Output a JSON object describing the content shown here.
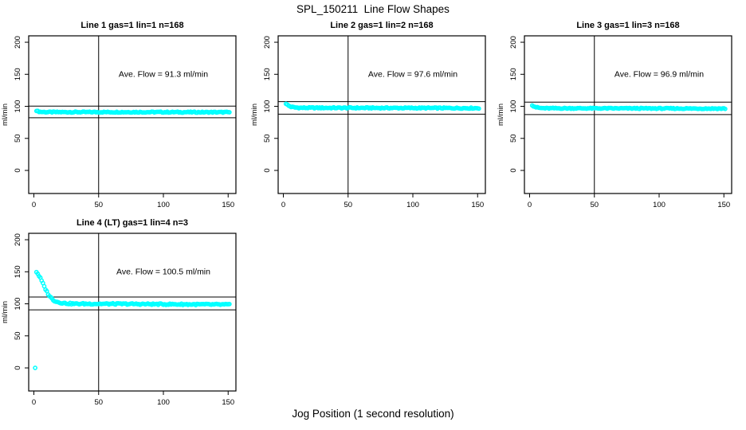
{
  "chart_data": {
    "type": "scatter",
    "title": "SPL_150211  Line Flow Shapes",
    "xlabel": "Jog Position (1 second resolution)",
    "ylabel": "ml/min",
    "xlim": [
      -4,
      156
    ],
    "ylim": [
      -36,
      210
    ],
    "x_ticks": [
      0,
      50,
      100,
      150
    ],
    "y_ticks": [
      0,
      50,
      100,
      150,
      200
    ],
    "point_color": "#00FFFF",
    "axis_color": "#000000",
    "crosshair_x": 50,
    "annotation_anchor": [
      100,
      150
    ],
    "legend_position": "none",
    "grid": false,
    "panels": [
      {
        "name": "line-1",
        "title": "Line 1 gas=1 lin=1 n=168",
        "ave_flow": 91.3,
        "ave_flow_label": "Ave. Flow =  91.3  ml/min",
        "ref_lines": [
          100.4,
          82.2
        ],
        "x_range": [
          2,
          151
        ],
        "n_samples": 150,
        "jitter": 0.8,
        "profile": [
          [
            2,
            93.5
          ],
          [
            3,
            92.2
          ],
          [
            5,
            91.4
          ],
          [
            10,
            91.0
          ],
          [
            80,
            91.0
          ],
          [
            151,
            90.8
          ]
        ],
        "extra_points": []
      },
      {
        "name": "line-2",
        "title": "Line 2 gas=1 lin=2 n=168",
        "ave_flow": 97.6,
        "ave_flow_label": "Ave. Flow =  97.6  ml/min",
        "ref_lines": [
          107.4,
          87.8
        ],
        "x_range": [
          2,
          151
        ],
        "n_samples": 150,
        "jitter": 0.9,
        "profile": [
          [
            2,
            104.5
          ],
          [
            3,
            102.5
          ],
          [
            4,
            101.0
          ],
          [
            6,
            99.3
          ],
          [
            9,
            98.2
          ],
          [
            14,
            97.7
          ],
          [
            80,
            97.5
          ],
          [
            151,
            97.2
          ]
        ],
        "extra_points": []
      },
      {
        "name": "line-3",
        "title": "Line 3 gas=1 lin=3 n=168",
        "ave_flow": 96.9,
        "ave_flow_label": "Ave. Flow =  96.9  ml/min",
        "ref_lines": [
          106.6,
          87.2
        ],
        "x_range": [
          2,
          151
        ],
        "n_samples": 150,
        "jitter": 0.8,
        "profile": [
          [
            2,
            102.0
          ],
          [
            3,
            100.5
          ],
          [
            5,
            98.6
          ],
          [
            8,
            97.4
          ],
          [
            12,
            97.0
          ],
          [
            80,
            96.8
          ],
          [
            151,
            96.5
          ]
        ],
        "extra_points": []
      },
      {
        "name": "line-4",
        "title": "Line 4 (LT) gas=1 lin=4 n=3",
        "ave_flow": 100.5,
        "ave_flow_label": "Ave. Flow =  100.5  ml/min",
        "ref_lines": [
          110.6,
          90.5
        ],
        "x_range": [
          2,
          151
        ],
        "n_samples": 150,
        "jitter": 1.1,
        "profile": [
          [
            2,
            150
          ],
          [
            3,
            147
          ],
          [
            4,
            143.5
          ],
          [
            5,
            140
          ],
          [
            6,
            136
          ],
          [
            7,
            131.5
          ],
          [
            8,
            127
          ],
          [
            9,
            123
          ],
          [
            10,
            119
          ],
          [
            11,
            115.5
          ],
          [
            12,
            112.5
          ],
          [
            13,
            110
          ],
          [
            14,
            108
          ],
          [
            15,
            106.2
          ],
          [
            16,
            104.8
          ],
          [
            18,
            103
          ],
          [
            20,
            102
          ],
          [
            23,
            101
          ],
          [
            27,
            100.4
          ],
          [
            32,
            100
          ],
          [
            45,
            100
          ],
          [
            70,
            99.8
          ],
          [
            100,
            99.4
          ],
          [
            130,
            99
          ],
          [
            151,
            98.8
          ]
        ],
        "extra_points": [
          [
            1,
            0
          ]
        ]
      }
    ]
  }
}
